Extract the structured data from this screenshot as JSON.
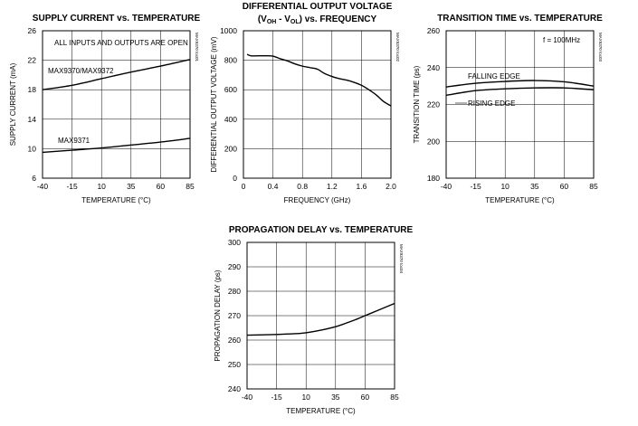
{
  "chart_data": [
    {
      "type": "line",
      "title": "SUPPLY CURRENT vs. TEMPERATURE",
      "xlabel": "TEMPERATURE (°C)",
      "ylabel": "SUPPLY CURRENT (mA)",
      "chart_code": "MAX9370 toc01",
      "xlim": [
        -40,
        85
      ],
      "ylim": [
        6,
        26
      ],
      "xticks": [
        -40,
        -15,
        10,
        35,
        60,
        85
      ],
      "yticks": [
        6,
        10,
        14,
        18,
        22,
        26
      ],
      "grid": true,
      "annotations": [
        "ALL INPUTS AND OUTPUTS ARE OPEN"
      ],
      "series": [
        {
          "name": "MAX9370/MAX9372",
          "x": [
            -40,
            -15,
            10,
            35,
            60,
            85
          ],
          "y": [
            18.0,
            18.6,
            19.5,
            20.4,
            21.2,
            22.1
          ]
        },
        {
          "name": "MAX9371",
          "x": [
            -40,
            -15,
            10,
            35,
            60,
            85
          ],
          "y": [
            9.5,
            9.8,
            10.1,
            10.5,
            10.9,
            11.4
          ]
        }
      ]
    },
    {
      "type": "line",
      "title_line1": "DIFFERENTIAL OUTPUT VOLTAGE",
      "title_line2_prefix": "(V",
      "title_line2_sub1": "OH",
      "title_line2_mid": " - V",
      "title_line2_sub2": "OL",
      "title_line2_suffix": ") vs. FREQUENCY",
      "xlabel": "FREQUENCY (GHz)",
      "ylabel": "DIFFERENTIAL OUTPUT VOLTAGE (mV)",
      "chart_code": "MAX9370 toc02",
      "xlim": [
        0,
        2.0
      ],
      "ylim": [
        0,
        1000
      ],
      "xticks": [
        "0",
        "0.4",
        "0.8",
        "1.2",
        "1.6",
        "2.0"
      ],
      "xtick_values": [
        0,
        0.4,
        0.8,
        1.2,
        1.6,
        2.0
      ],
      "yticks": [
        0,
        200,
        400,
        600,
        800,
        1000
      ],
      "grid": true,
      "series": [
        {
          "x": [
            0.05,
            0.1,
            0.2,
            0.3,
            0.4,
            0.5,
            0.6,
            0.7,
            0.8,
            0.9,
            1.0,
            1.1,
            1.2,
            1.3,
            1.4,
            1.5,
            1.6,
            1.7,
            1.8,
            1.9,
            2.0
          ],
          "y": [
            840,
            830,
            830,
            830,
            828,
            810,
            795,
            775,
            760,
            750,
            740,
            710,
            690,
            675,
            665,
            650,
            630,
            600,
            565,
            520,
            490
          ]
        }
      ]
    },
    {
      "type": "line",
      "title": "TRANSITION TIME vs. TEMPERATURE",
      "xlabel": "TEMPERATURE (°C)",
      "ylabel": "TRANSITION TIME (ps)",
      "chart_code": "MAX9370 toc03",
      "xlim": [
        -40,
        85
      ],
      "ylim": [
        180,
        260
      ],
      "xticks": [
        -40,
        -15,
        10,
        35,
        60,
        85
      ],
      "yticks": [
        180,
        200,
        220,
        240,
        260
      ],
      "grid": true,
      "annotations": [
        "f = 100MHz"
      ],
      "series": [
        {
          "name": "FALLING EDGE",
          "x": [
            -40,
            -15,
            10,
            35,
            60,
            85
          ],
          "y": [
            229.5,
            231.5,
            232.5,
            233,
            232.3,
            230
          ]
        },
        {
          "name": "RISING EDGE",
          "x": [
            -40,
            -15,
            10,
            35,
            60,
            85
          ],
          "y": [
            225,
            227.5,
            228.5,
            229,
            229,
            228
          ]
        }
      ]
    },
    {
      "type": "line",
      "title": "PROPAGATION DELAY vs. TEMPERATURE",
      "xlabel": "TEMPERATURE (°C)",
      "ylabel": "PROPAGATION DELAY (ps)",
      "chart_code": "MAX9370 toc04",
      "xlim": [
        -40,
        85
      ],
      "ylim": [
        240,
        300
      ],
      "xticks": [
        -40,
        -15,
        10,
        35,
        60,
        85
      ],
      "yticks": [
        240,
        250,
        260,
        270,
        280,
        290,
        300
      ],
      "grid": true,
      "series": [
        {
          "x": [
            -40,
            -15,
            0,
            10,
            20,
            35,
            50,
            60,
            70,
            85
          ],
          "y": [
            262,
            262.3,
            262.6,
            263,
            263.8,
            265.5,
            268,
            270,
            272,
            275
          ]
        }
      ]
    }
  ]
}
